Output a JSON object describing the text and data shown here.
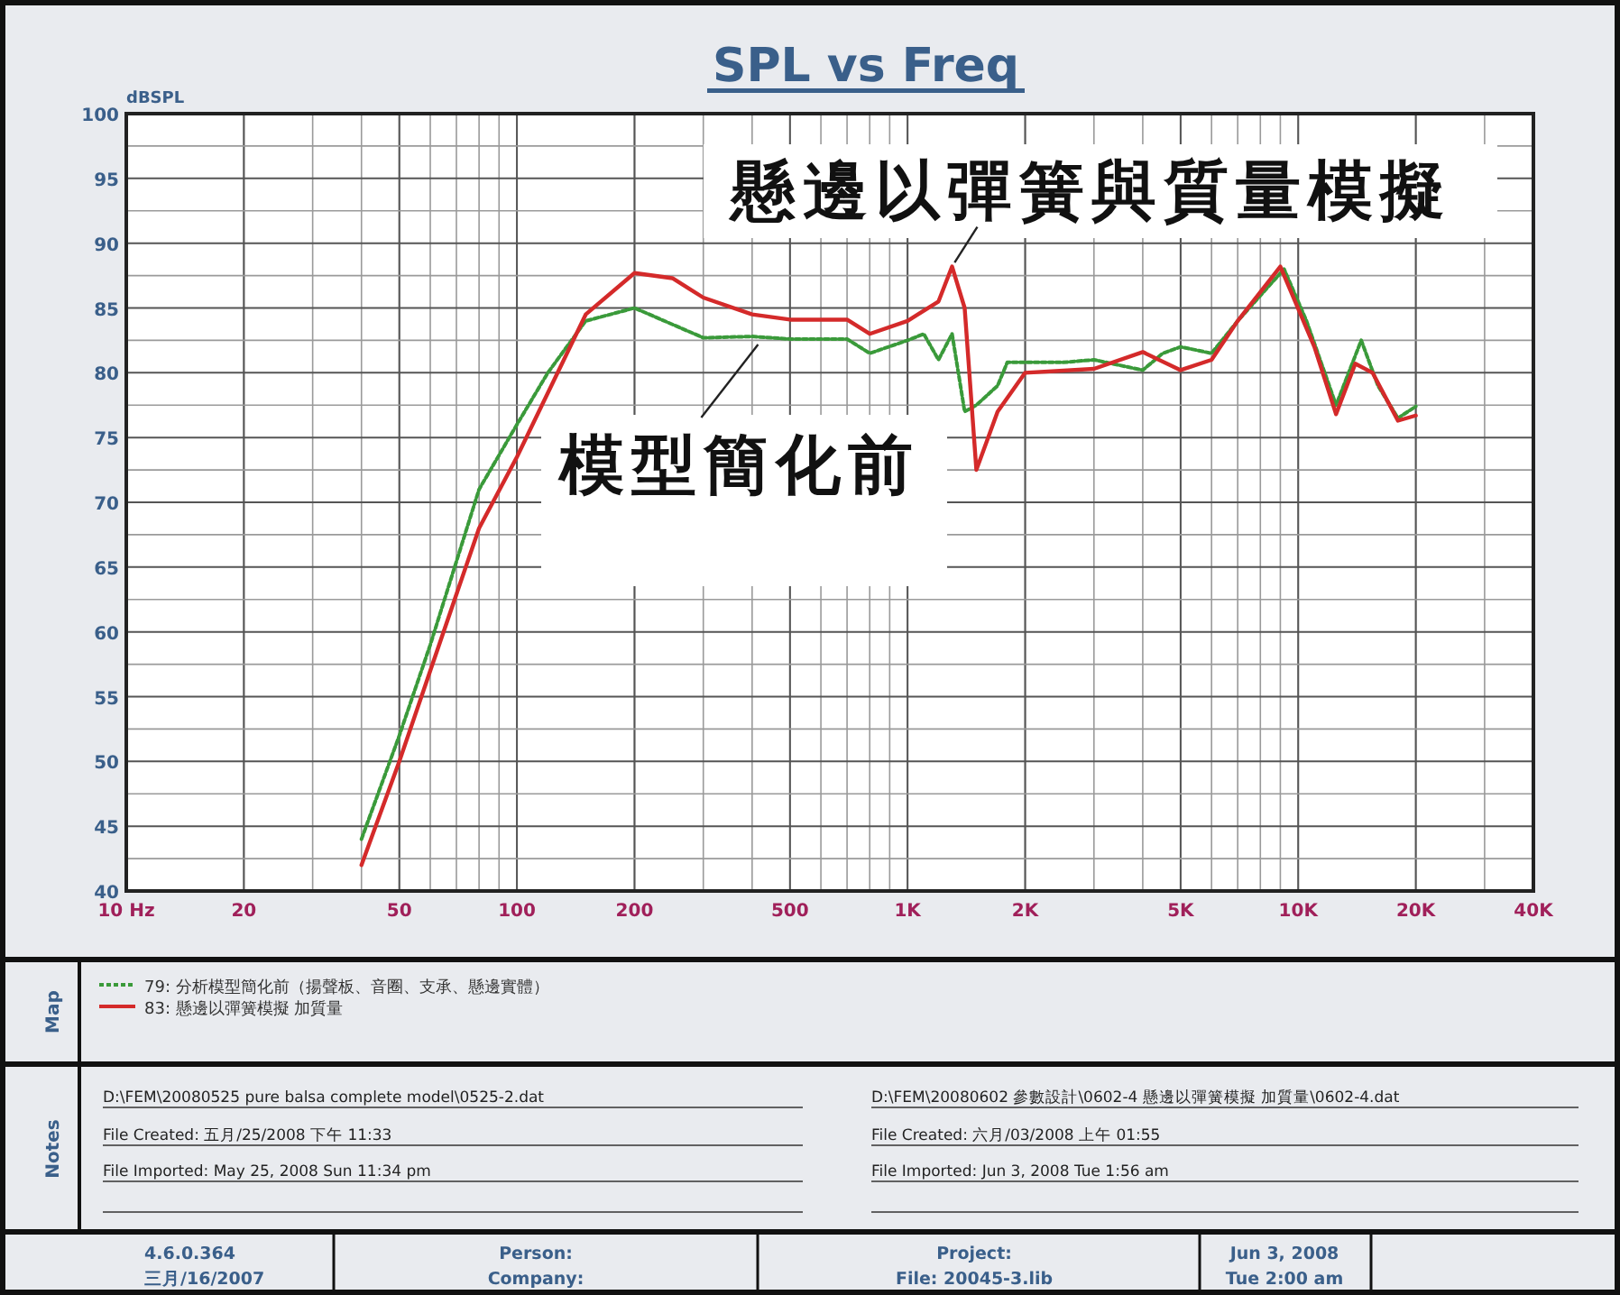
{
  "chart_data": {
    "type": "line",
    "title": "SPL vs Freq",
    "ylabel": "dBSPL",
    "log": "x",
    "grid": true,
    "legend": "bottom",
    "xlim": [
      10,
      40000
    ],
    "xticks": [
      {
        "value": 10,
        "label": "10 Hz"
      },
      20,
      50,
      100,
      200,
      500,
      {
        "value": 1000,
        "label": "1K"
      },
      {
        "value": 2000,
        "label": "2K"
      },
      {
        "value": 5000,
        "label": "5K"
      },
      {
        "value": 10000,
        "label": "10K"
      },
      {
        "value": 20000,
        "label": "20K"
      },
      {
        "value": 40000,
        "label": "40K"
      }
    ],
    "ylim": [
      40,
      100
    ],
    "yticks": [
      40,
      45,
      50,
      55,
      60,
      65,
      70,
      75,
      80,
      85,
      90,
      95,
      100
    ],
    "series": [
      {
        "name": "79: 分析模型簡化前（揚聲板、音圈、支承、懸邊實體）",
        "color": "#3a9a3a",
        "line_style": "dotted",
        "x": [
          40,
          50,
          60,
          80,
          100,
          120,
          150,
          200,
          300,
          400,
          500,
          700,
          800,
          1000,
          1100,
          1200,
          1300,
          1400,
          1500,
          1700,
          1800,
          2500,
          3000,
          4000,
          4500,
          5000,
          6000,
          7000,
          9200,
          10500,
          12500,
          14500,
          16000,
          18000,
          20000
        ],
        "values": [
          44,
          52,
          59,
          71,
          76,
          80,
          84,
          85,
          82.7,
          82.8,
          82.6,
          82.6,
          81.5,
          82.5,
          83,
          81,
          83,
          77,
          77.5,
          79,
          80.8,
          80.8,
          81,
          80.2,
          81.5,
          82,
          81.5,
          84,
          88,
          84,
          77.5,
          82.5,
          79,
          76.5,
          77.4
        ]
      },
      {
        "name": "83: 懸邊以彈簧模擬 加質量",
        "color": "#d42a2a",
        "line_style": "solid",
        "x": [
          40,
          50,
          60,
          80,
          100,
          150,
          200,
          250,
          300,
          400,
          500,
          700,
          800,
          1000,
          1200,
          1300,
          1400,
          1500,
          1700,
          2000,
          3000,
          4000,
          5000,
          6000,
          7000,
          9000,
          11000,
          12500,
          14000,
          15500,
          18000,
          20000
        ],
        "values": [
          42,
          50,
          57,
          68,
          73.5,
          84.5,
          87.7,
          87.3,
          85.8,
          84.5,
          84.1,
          84.1,
          83,
          84,
          85.5,
          88.2,
          85,
          72.5,
          77,
          80,
          80.3,
          81.6,
          80.2,
          81,
          84,
          88.2,
          82,
          76.8,
          80.7,
          80,
          76.3,
          76.7
        ]
      }
    ],
    "annotations": [
      {
        "text": "懸邊以彈簧與質量模擬",
        "x": 1300,
        "y": 88.2
      },
      {
        "text": "模型簡化前",
        "x": 430,
        "y": 82.8
      },
      "Map",
      "Notes",
      "D:\\FEM\\20080525 pure balsa complete model\\0525-2.dat",
      "File Created: 五月/25/2008 下午 11:33",
      "File Imported: May 25, 2008  Sun 11:34 pm",
      "D:\\FEM\\20080602 參數設計\\0602-4 懸邊以彈簧模擬 加質量\\0602-4.dat",
      "File Created: 六月/03/2008 上午 01:55",
      "File Imported: Jun  3, 2008  Tue  1:56 am",
      "4.6.0.364",
      "三月/16/2007",
      "Person:",
      "Company:",
      "Project:",
      "File: 20045-3.lib",
      "Jun  3, 2008",
      "Tue  2:00 am"
    ]
  }
}
